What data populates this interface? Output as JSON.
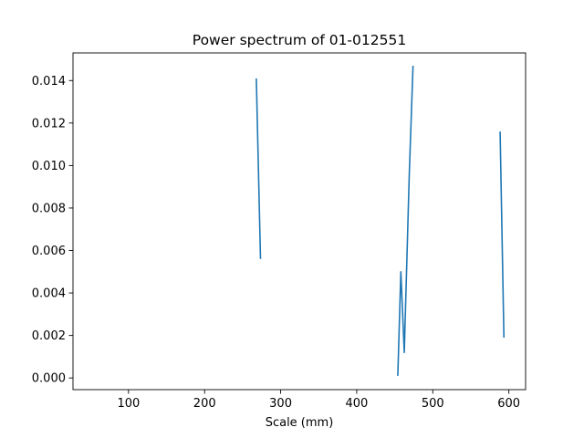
{
  "chart_data": {
    "type": "line",
    "title": "Power spectrum of 01-012551",
    "xlabel": "Scale (mm)",
    "ylabel": "",
    "xlim": [
      27,
      622
    ],
    "ylim": [
      -0.00055,
      0.0153
    ],
    "x_ticks": [
      100,
      200,
      300,
      400,
      500,
      600
    ],
    "x_tick_labels": [
      "100",
      "200",
      "300",
      "400",
      "500",
      "600"
    ],
    "y_ticks": [
      0.0,
      0.002,
      0.004,
      0.006,
      0.008,
      0.01,
      0.012,
      0.014
    ],
    "y_tick_labels": [
      "0.000",
      "0.002",
      "0.004",
      "0.006",
      "0.008",
      "0.010",
      "0.012",
      "0.014"
    ],
    "grid": false,
    "color": "#1f77b4",
    "segments": [
      {
        "x": [
          268,
          273.5
        ],
        "y": [
          0.0141,
          0.0056
        ]
      },
      {
        "x": [
          454,
          458,
          462.5,
          469,
          474
        ],
        "y": [
          0.0001,
          0.005,
          0.0012,
          0.0095,
          0.0147
        ]
      },
      {
        "x": [
          588.5,
          593.5
        ],
        "y": [
          0.0116,
          0.0019
        ]
      }
    ]
  }
}
